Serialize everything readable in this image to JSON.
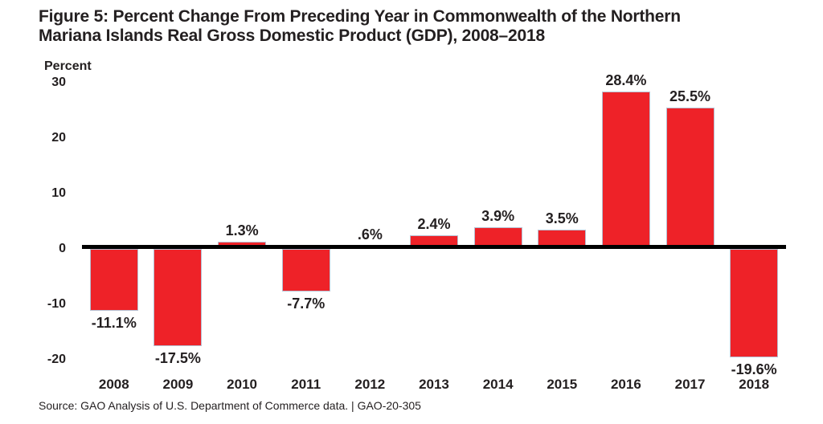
{
  "figure": {
    "title_lines": [
      "Figure 5: Percent Change From Preceding Year in Commonwealth of the Northern",
      "Mariana Islands Real Gross Domestic Product (GDP), 2008–2018"
    ],
    "source": "Source: GAO Analysis of U.S. Department of Commerce data. | GAO-20-305"
  },
  "chart_data": {
    "type": "bar",
    "title": "Figure 5: Percent Change From Preceding Year in Commonwealth of the Northern Mariana Islands Real Gross Domestic Product (GDP), 2008–2018",
    "ylabel": "Percent",
    "xlabel": "",
    "categories": [
      "2008",
      "2009",
      "2010",
      "2011",
      "2012",
      "2013",
      "2014",
      "2015",
      "2016",
      "2017",
      "2018"
    ],
    "values": [
      -11.1,
      -17.5,
      1.3,
      -7.7,
      0.6,
      2.4,
      3.9,
      3.5,
      28.4,
      25.5,
      -19.6
    ],
    "value_labels": [
      "-11.1%",
      "-17.5%",
      "1.3%",
      "-7.7%",
      ".6%",
      "2.4%",
      "3.9%",
      "3.5%",
      "28.4%",
      "25.5%",
      "-19.6%"
    ],
    "yticks": [
      30,
      20,
      10,
      0,
      -10,
      -20
    ],
    "ytick_labels": [
      "30",
      "20",
      "10",
      "0",
      "-10",
      "-20"
    ],
    "ylim": [
      -22,
      31
    ],
    "grid": false,
    "legend": null,
    "bar_color": "#EE2228",
    "bar_border_color": "#B6C0D2",
    "baseline_color": "#000000",
    "text_color": "#231F20"
  }
}
